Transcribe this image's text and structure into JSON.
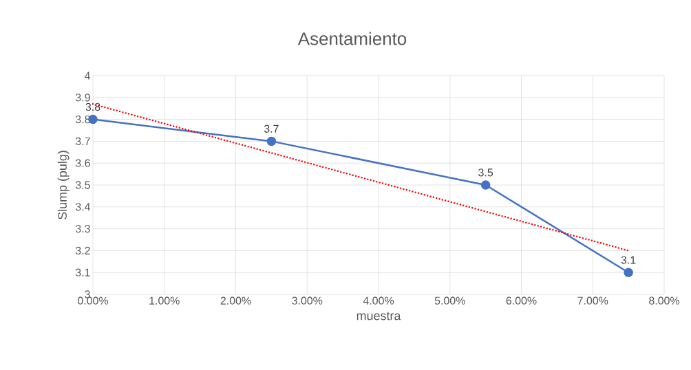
{
  "chart_data": {
    "type": "line",
    "title": "Asentamiento",
    "xlabel": "muestra",
    "ylabel": "Slump (pulg)",
    "xlim": [
      0,
      8
    ],
    "xticks": [
      {
        "value": 0,
        "label": "0.00%"
      },
      {
        "value": 1,
        "label": "1.00%"
      },
      {
        "value": 2,
        "label": "2.00%"
      },
      {
        "value": 3,
        "label": "3.00%"
      },
      {
        "value": 4,
        "label": "4.00%"
      },
      {
        "value": 5,
        "label": "5.00%"
      },
      {
        "value": 6,
        "label": "6.00%"
      },
      {
        "value": 7,
        "label": "7.00%"
      },
      {
        "value": 8,
        "label": "8.00%"
      }
    ],
    "ylim": [
      3,
      4
    ],
    "yticks": [
      3,
      3.1,
      3.2,
      3.3,
      3.4,
      3.5,
      3.6,
      3.7,
      3.8,
      3.9,
      4
    ],
    "grid": true,
    "series": [
      {
        "color": "#4472c4",
        "x": [
          0,
          2.5,
          5.5,
          7.5
        ],
        "values": [
          3.8,
          3.7,
          3.5,
          3.1
        ],
        "marker": "circle",
        "line_style": "solid",
        "data_labels": true
      },
      {
        "color": "#ff0000",
        "x": [
          0,
          7.5
        ],
        "values": [
          3.87,
          3.2
        ],
        "marker": "none",
        "line_style": "dotted"
      }
    ]
  }
}
